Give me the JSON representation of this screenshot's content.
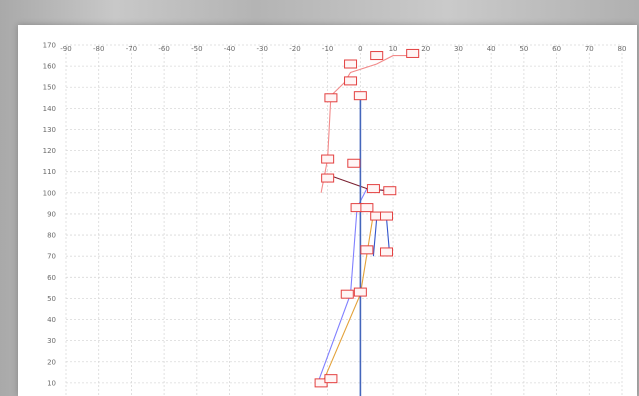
{
  "chart_data": {
    "type": "line",
    "title": "",
    "xlabel": "",
    "ylabel": "",
    "xlim": [
      -90,
      80
    ],
    "ylim": [
      0,
      170
    ],
    "x_ticks": [
      -90,
      -80,
      -70,
      -60,
      -50,
      -40,
      -30,
      -20,
      -10,
      0,
      10,
      20,
      30,
      40,
      50,
      60,
      70,
      80
    ],
    "y_ticks": [
      10,
      20,
      30,
      40,
      50,
      60,
      70,
      80,
      90,
      100,
      110,
      120,
      130,
      140,
      150,
      160,
      170
    ],
    "grid": true,
    "series": [
      {
        "color": "#f28a8a",
        "points": [
          [
            -12,
            100
          ],
          [
            -11,
            108
          ],
          [
            -10,
            116
          ],
          [
            -9,
            146
          ],
          [
            -5,
            152
          ],
          [
            -3,
            157
          ],
          [
            5,
            161
          ],
          [
            10,
            165
          ],
          [
            18,
            165
          ]
        ]
      },
      {
        "color": "#8080ff",
        "points": [
          [
            -13,
            10
          ],
          [
            -3,
            52
          ],
          [
            -1,
            93
          ],
          [
            2,
            102
          ],
          [
            8,
            101
          ]
        ]
      },
      {
        "color": "#e3a23a",
        "points": [
          [
            -11,
            12
          ],
          [
            0,
            52
          ],
          [
            4,
            90
          ],
          [
            6,
            88
          ]
        ]
      },
      {
        "color": "#3355cc",
        "points": [
          [
            4,
            70
          ],
          [
            5,
            88
          ],
          [
            8,
            88
          ],
          [
            9,
            70
          ]
        ]
      },
      {
        "color": "#7a2030",
        "points": [
          [
            -9,
            108
          ],
          [
            2,
            102
          ],
          [
            8,
            101
          ]
        ]
      },
      {
        "color": "#4466bb",
        "points": [
          [
            0,
            0
          ],
          [
            0,
            145
          ]
        ]
      }
    ],
    "markers": [
      {
        "x": 5,
        "y": 165
      },
      {
        "x": 16,
        "y": 166
      },
      {
        "x": -3,
        "y": 161
      },
      {
        "x": -3,
        "y": 153
      },
      {
        "x": 0,
        "y": 146
      },
      {
        "x": -9,
        "y": 145
      },
      {
        "x": -10,
        "y": 116
      },
      {
        "x": -2,
        "y": 114
      },
      {
        "x": -10,
        "y": 107
      },
      {
        "x": 4,
        "y": 102
      },
      {
        "x": 9,
        "y": 101
      },
      {
        "x": -1,
        "y": 93
      },
      {
        "x": 2,
        "y": 93
      },
      {
        "x": 5,
        "y": 89
      },
      {
        "x": 8,
        "y": 89
      },
      {
        "x": 2,
        "y": 73
      },
      {
        "x": 8,
        "y": 72
      },
      {
        "x": -4,
        "y": 52
      },
      {
        "x": 0,
        "y": 53
      },
      {
        "x": -12,
        "y": 10
      },
      {
        "x": -9,
        "y": 12
      }
    ]
  },
  "colors": {
    "grid": "#d9d9d9",
    "marker": "#e34040",
    "tick_text": "#6a6a6a"
  }
}
